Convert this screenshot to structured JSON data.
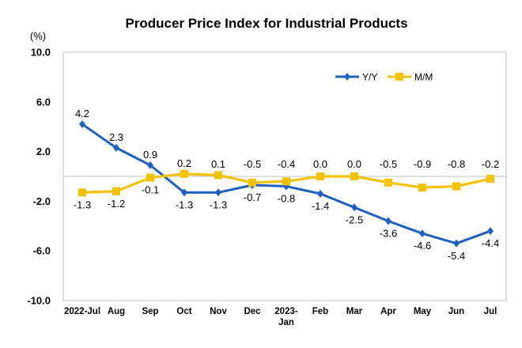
{
  "chart_data": {
    "type": "line",
    "title": "Producer Price Index for Industrial Products",
    "unit_label": "(%)",
    "ylim": [
      -10.0,
      10.0
    ],
    "yticks": [
      "10.0",
      "6.0",
      "2.0",
      "-2.0",
      "-6.0",
      "-10.0"
    ],
    "ytick_values": [
      10,
      6,
      2,
      -2,
      -6,
      -10
    ],
    "categories": [
      "2022-Jul",
      "Aug",
      "Sep",
      "Oct",
      "Nov",
      "Dec",
      "2023-Jan",
      "Feb",
      "Mar",
      "Apr",
      "May",
      "Jun",
      "Jul"
    ],
    "category_display": [
      [
        "2022-Jul"
      ],
      [
        "Aug"
      ],
      [
        "Sep"
      ],
      [
        "Oct"
      ],
      [
        "Nov"
      ],
      [
        "Dec"
      ],
      [
        "2023-",
        "Jan"
      ],
      [
        "Feb"
      ],
      [
        "Mar"
      ],
      [
        "Apr"
      ],
      [
        "May"
      ],
      [
        "Jun"
      ],
      [
        "Jul"
      ]
    ],
    "legend_position": "top-right",
    "series": [
      {
        "name": "Y/Y",
        "color": "#1f5fbf",
        "marker": "diamond",
        "values": [
          4.2,
          2.3,
          0.9,
          -1.3,
          -1.3,
          -0.7,
          -0.8,
          -1.4,
          -2.5,
          -3.6,
          -4.6,
          -5.4,
          -4.4
        ],
        "labels": [
          "4.2",
          "2.3",
          "0.9",
          "-1.3",
          "-1.3",
          "-0.7",
          "-0.8",
          "-1.4",
          "-2.5",
          "-3.6",
          "-4.6",
          "-5.4",
          "-4.4"
        ]
      },
      {
        "name": "M/M",
        "color": "#f2c200",
        "marker": "square",
        "values": [
          -1.3,
          -1.2,
          -0.1,
          0.2,
          0.1,
          -0.5,
          -0.4,
          0.0,
          0.0,
          -0.5,
          -0.9,
          -0.8,
          -0.2
        ],
        "labels": [
          "-1.3",
          "-1.2",
          "-0.1",
          "0.2",
          "0.1",
          "-0.5",
          "-0.4",
          "0.0",
          "0.0",
          "-0.5",
          "-0.9",
          "-0.8",
          "-0.2"
        ]
      }
    ]
  }
}
